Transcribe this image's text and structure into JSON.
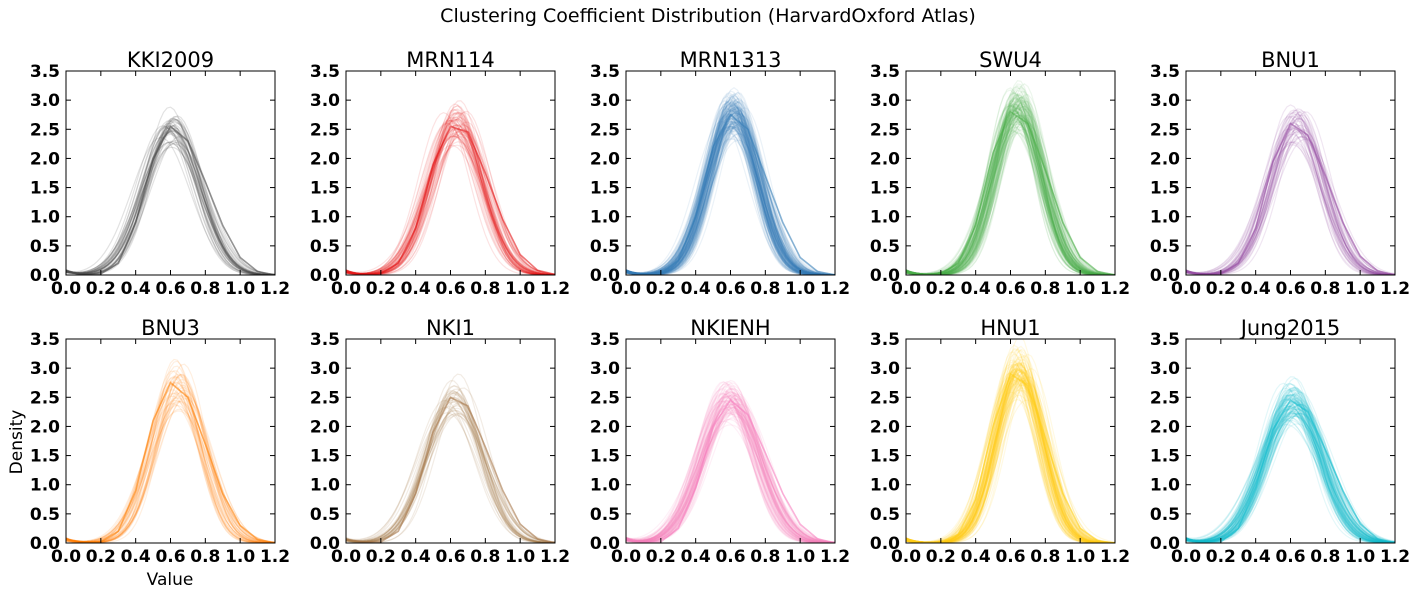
{
  "figure": {
    "suptitle": "Clustering Coefficient Distribution (HarvardOxford Atlas)",
    "ylabel": "Density",
    "xlabel": "Value"
  },
  "chart_data": [
    {
      "type": "line",
      "title": "KKI2009",
      "color": "#4d4d4d",
      "n_curves": 40,
      "alpha": 0.16,
      "xlim": [
        0.0,
        1.2
      ],
      "ylim": [
        0.0,
        3.5
      ],
      "x_ticks": [
        "0.0",
        "0.2",
        "0.4",
        "0.6",
        "0.8",
        "1.0",
        "1.2"
      ],
      "y_ticks": [
        "0.0",
        "0.5",
        "1.0",
        "1.5",
        "2.0",
        "2.5",
        "3.0",
        "3.5"
      ],
      "peak_x": 0.6,
      "peak_y": 2.55,
      "series": [
        {
          "x": [
            0.0,
            0.1,
            0.2,
            0.3,
            0.4,
            0.5,
            0.6,
            0.7,
            0.8,
            0.9,
            1.0,
            1.1,
            1.2
          ],
          "y": [
            0.05,
            0.01,
            0.02,
            0.2,
            0.9,
            2.0,
            2.55,
            2.3,
            1.6,
            0.85,
            0.3,
            0.06,
            0.0
          ]
        }
      ]
    },
    {
      "type": "line",
      "title": "MRN114",
      "color": "#e41a1c",
      "n_curves": 60,
      "alpha": 0.12,
      "xlim": [
        0.0,
        1.2
      ],
      "ylim": [
        0.0,
        3.5
      ],
      "x_ticks": [
        "0.0",
        "0.2",
        "0.4",
        "0.6",
        "0.8",
        "1.0",
        "1.2"
      ],
      "y_ticks": [
        "0.0",
        "0.5",
        "1.0",
        "1.5",
        "2.0",
        "2.5",
        "3.0",
        "3.5"
      ],
      "peak_x": 0.64,
      "peak_y": 2.6,
      "series": [
        {
          "x": [
            0.0,
            0.1,
            0.2,
            0.3,
            0.4,
            0.5,
            0.6,
            0.7,
            0.8,
            0.9,
            1.0,
            1.1,
            1.2
          ],
          "y": [
            0.05,
            0.01,
            0.03,
            0.2,
            0.8,
            1.9,
            2.55,
            2.45,
            1.75,
            0.95,
            0.35,
            0.08,
            0.01
          ]
        }
      ]
    },
    {
      "type": "line",
      "title": "MRN1313",
      "color": "#377eb8",
      "n_curves": 160,
      "alpha": 0.1,
      "xlim": [
        0.0,
        1.2
      ],
      "ylim": [
        0.0,
        3.5
      ],
      "x_ticks": [
        "0.0",
        "0.2",
        "0.4",
        "0.6",
        "0.8",
        "1.0",
        "1.2"
      ],
      "y_ticks": [
        "0.0",
        "0.5",
        "1.0",
        "1.5",
        "2.0",
        "2.5",
        "3.0",
        "3.5"
      ],
      "peak_x": 0.62,
      "peak_y": 2.75,
      "series": [
        {
          "x": [
            0.0,
            0.1,
            0.2,
            0.3,
            0.4,
            0.5,
            0.6,
            0.7,
            0.8,
            0.9,
            1.0,
            1.1,
            1.2
          ],
          "y": [
            0.05,
            0.01,
            0.03,
            0.25,
            1.0,
            2.2,
            2.75,
            2.5,
            1.7,
            0.9,
            0.3,
            0.06,
            0.0
          ]
        }
      ]
    },
    {
      "type": "line",
      "title": "SWU4",
      "color": "#4daf4a",
      "n_curves": 130,
      "alpha": 0.1,
      "xlim": [
        0.0,
        1.2
      ],
      "ylim": [
        0.0,
        3.5
      ],
      "x_ticks": [
        "0.0",
        "0.2",
        "0.4",
        "0.6",
        "0.8",
        "1.0",
        "1.2"
      ],
      "y_ticks": [
        "0.0",
        "0.5",
        "1.0",
        "1.5",
        "2.0",
        "2.5",
        "3.0",
        "3.5"
      ],
      "peak_x": 0.64,
      "peak_y": 2.85,
      "series": [
        {
          "x": [
            0.0,
            0.1,
            0.2,
            0.3,
            0.4,
            0.5,
            0.6,
            0.7,
            0.8,
            0.9,
            1.0,
            1.1,
            1.2
          ],
          "y": [
            0.05,
            0.01,
            0.02,
            0.2,
            0.85,
            2.1,
            2.8,
            2.6,
            1.8,
            0.9,
            0.3,
            0.06,
            0.0
          ]
        }
      ]
    },
    {
      "type": "line",
      "title": "BNU1",
      "color": "#984ea3",
      "n_curves": 45,
      "alpha": 0.14,
      "xlim": [
        0.0,
        1.2
      ],
      "ylim": [
        0.0,
        3.5
      ],
      "x_ticks": [
        "0.0",
        "0.2",
        "0.4",
        "0.6",
        "0.8",
        "1.0",
        "1.2"
      ],
      "y_ticks": [
        "0.0",
        "0.5",
        "1.0",
        "1.5",
        "2.0",
        "2.5",
        "3.0",
        "3.5"
      ],
      "peak_x": 0.64,
      "peak_y": 2.6,
      "series": [
        {
          "x": [
            0.0,
            0.1,
            0.2,
            0.3,
            0.4,
            0.5,
            0.6,
            0.7,
            0.8,
            0.9,
            1.0,
            1.1,
            1.2
          ],
          "y": [
            0.05,
            0.01,
            0.02,
            0.2,
            0.8,
            1.95,
            2.6,
            2.4,
            1.7,
            0.9,
            0.32,
            0.07,
            0.0
          ]
        }
      ]
    },
    {
      "type": "line",
      "title": "BNU3",
      "color": "#ff7f00",
      "n_curves": 40,
      "alpha": 0.12,
      "xlim": [
        0.0,
        1.2
      ],
      "ylim": [
        0.0,
        3.5
      ],
      "x_ticks": [
        "0.0",
        "0.2",
        "0.4",
        "0.6",
        "0.8",
        "1.0",
        "1.2"
      ],
      "y_ticks": [
        "0.0",
        "0.5",
        "1.0",
        "1.5",
        "2.0",
        "2.5",
        "3.0",
        "3.5"
      ],
      "peak_x": 0.64,
      "peak_y": 2.75,
      "series": [
        {
          "x": [
            0.0,
            0.1,
            0.2,
            0.3,
            0.4,
            0.5,
            0.6,
            0.7,
            0.8,
            0.9,
            1.0,
            1.1,
            1.2
          ],
          "y": [
            0.06,
            0.02,
            0.02,
            0.2,
            0.9,
            2.1,
            2.75,
            2.5,
            1.7,
            0.85,
            0.3,
            0.06,
            0.0
          ]
        }
      ]
    },
    {
      "type": "line",
      "title": "NKI1",
      "color": "#a6764a",
      "n_curves": 35,
      "alpha": 0.14,
      "xlim": [
        0.0,
        1.2
      ],
      "ylim": [
        0.0,
        3.5
      ],
      "x_ticks": [
        "0.0",
        "0.2",
        "0.4",
        "0.6",
        "0.8",
        "1.0",
        "1.2"
      ],
      "y_ticks": [
        "0.0",
        "0.5",
        "1.0",
        "1.5",
        "2.0",
        "2.5",
        "3.0",
        "3.5"
      ],
      "peak_x": 0.62,
      "peak_y": 2.5,
      "series": [
        {
          "x": [
            0.0,
            0.1,
            0.2,
            0.3,
            0.4,
            0.5,
            0.6,
            0.7,
            0.8,
            0.9,
            1.0,
            1.1,
            1.2
          ],
          "y": [
            0.06,
            0.02,
            0.02,
            0.2,
            0.85,
            1.9,
            2.5,
            2.35,
            1.65,
            0.9,
            0.32,
            0.07,
            0.0
          ]
        }
      ]
    },
    {
      "type": "line",
      "title": "NKIENH",
      "color": "#f781bf",
      "n_curves": 90,
      "alpha": 0.12,
      "xlim": [
        0.0,
        1.2
      ],
      "ylim": [
        0.0,
        3.5
      ],
      "x_ticks": [
        "0.0",
        "0.2",
        "0.4",
        "0.6",
        "0.8",
        "1.0",
        "1.2"
      ],
      "y_ticks": [
        "0.0",
        "0.5",
        "1.0",
        "1.5",
        "2.0",
        "2.5",
        "3.0",
        "3.5"
      ],
      "peak_x": 0.6,
      "peak_y": 2.45,
      "series": [
        {
          "x": [
            0.0,
            0.1,
            0.2,
            0.3,
            0.4,
            0.5,
            0.6,
            0.7,
            0.8,
            0.9,
            1.0,
            1.1,
            1.2
          ],
          "y": [
            0.06,
            0.02,
            0.02,
            0.25,
            0.95,
            2.0,
            2.45,
            2.2,
            1.55,
            0.85,
            0.32,
            0.07,
            0.0
          ]
        }
      ]
    },
    {
      "type": "line",
      "title": "HNU1",
      "color": "#ffd11a",
      "n_curves": 110,
      "alpha": 0.12,
      "xlim": [
        0.0,
        1.2
      ],
      "ylim": [
        0.0,
        3.5
      ],
      "x_ticks": [
        "0.0",
        "0.2",
        "0.4",
        "0.6",
        "0.8",
        "1.0",
        "1.2"
      ],
      "y_ticks": [
        "0.0",
        "0.5",
        "1.0",
        "1.5",
        "2.0",
        "2.5",
        "3.0",
        "3.5"
      ],
      "peak_x": 0.65,
      "peak_y": 2.95,
      "series": [
        {
          "x": [
            0.0,
            0.1,
            0.2,
            0.3,
            0.4,
            0.5,
            0.6,
            0.7,
            0.8,
            0.9,
            1.0,
            1.1,
            1.2
          ],
          "y": [
            0.05,
            0.01,
            0.01,
            0.15,
            0.75,
            2.0,
            2.9,
            2.7,
            1.8,
            0.85,
            0.25,
            0.04,
            0.0
          ]
        }
      ]
    },
    {
      "type": "line",
      "title": "Jung2015",
      "color": "#17becf",
      "n_curves": 100,
      "alpha": 0.12,
      "xlim": [
        0.0,
        1.2
      ],
      "ylim": [
        0.0,
        3.5
      ],
      "x_ticks": [
        "0.0",
        "0.2",
        "0.4",
        "0.6",
        "0.8",
        "1.0",
        "1.2"
      ],
      "y_ticks": [
        "0.0",
        "0.5",
        "1.0",
        "1.5",
        "2.0",
        "2.5",
        "3.0",
        "3.5"
      ],
      "peak_x": 0.62,
      "peak_y": 2.45,
      "series": [
        {
          "x": [
            0.0,
            0.1,
            0.2,
            0.3,
            0.4,
            0.5,
            0.6,
            0.7,
            0.8,
            0.9,
            1.0,
            1.1,
            1.2
          ],
          "y": [
            0.06,
            0.02,
            0.02,
            0.25,
            0.95,
            1.95,
            2.45,
            2.25,
            1.6,
            0.9,
            0.33,
            0.07,
            0.0
          ]
        }
      ]
    }
  ]
}
